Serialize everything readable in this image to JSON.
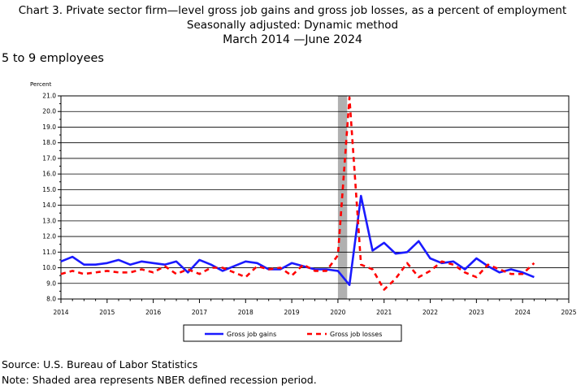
{
  "title": {
    "line1": "Chart 3. Private sector firm—level gross job gains and gross job losses, as a percent of employment",
    "line2": "Seasonally adjusted: Dynamic method",
    "line3": "March 2014  —June 2024"
  },
  "subtitle": "5 to 9 employees",
  "footer": {
    "source": "Source: U.S. Bureau of Labor Statistics",
    "note": "Note: Shaded area represents NBER defined recession period."
  },
  "colors": {
    "gains": "#1a1aff",
    "losses": "#ff0000",
    "recession": "#b0b0b0"
  },
  "chart_data": {
    "type": "line",
    "ylabel": "Percent",
    "ylim": [
      8.0,
      21.0
    ],
    "xlim": [
      2014,
      2025
    ],
    "y_ticks": [
      "8.0",
      "9.0",
      "10.0",
      "11.0",
      "12.0",
      "13.0",
      "14.0",
      "15.0",
      "16.0",
      "17.0",
      "18.0",
      "19.0",
      "20.0",
      "21.0"
    ],
    "x_ticks": [
      "2014",
      "2015",
      "2016",
      "2017",
      "2018",
      "2019",
      "2020",
      "2021",
      "2022",
      "2023",
      "2024",
      "2025"
    ],
    "grid": true,
    "legend_position": "bottom",
    "recession": [
      2020.0,
      2020.2
    ],
    "series": [
      {
        "name": "Gross job gains",
        "style": "solid",
        "x": [
          2014.0,
          2014.25,
          2014.5,
          2014.75,
          2015.0,
          2015.25,
          2015.5,
          2015.75,
          2016.0,
          2016.25,
          2016.5,
          2016.75,
          2017.0,
          2017.25,
          2017.5,
          2017.75,
          2018.0,
          2018.25,
          2018.5,
          2018.75,
          2019.0,
          2019.25,
          2019.5,
          2019.75,
          2020.0,
          2020.25,
          2020.5,
          2020.75,
          2021.0,
          2021.25,
          2021.5,
          2021.75,
          2022.0,
          2022.25,
          2022.5,
          2022.75,
          2023.0,
          2023.25,
          2023.5,
          2023.75,
          2024.0,
          2024.25
        ],
        "values": [
          10.4,
          10.7,
          10.2,
          10.2,
          10.3,
          10.5,
          10.2,
          10.4,
          10.3,
          10.2,
          10.4,
          9.7,
          10.5,
          10.2,
          9.8,
          10.1,
          10.4,
          10.3,
          9.9,
          9.9,
          10.3,
          10.1,
          9.9,
          9.9,
          9.8,
          8.9,
          14.6,
          11.1,
          11.6,
          10.9,
          11.0,
          11.7,
          10.6,
          10.3,
          10.4,
          9.9,
          10.6,
          10.1,
          9.7,
          9.9,
          9.7,
          9.4
        ]
      },
      {
        "name": "Gross job losses",
        "style": "dashed",
        "x": [
          2014.0,
          2014.25,
          2014.5,
          2014.75,
          2015.0,
          2015.25,
          2015.5,
          2015.75,
          2016.0,
          2016.25,
          2016.5,
          2016.75,
          2017.0,
          2017.25,
          2017.5,
          2017.75,
          2018.0,
          2018.25,
          2018.5,
          2018.75,
          2019.0,
          2019.25,
          2019.5,
          2019.75,
          2020.0,
          2020.25,
          2020.5,
          2020.75,
          2021.0,
          2021.25,
          2021.5,
          2021.75,
          2022.0,
          2022.25,
          2022.5,
          2022.75,
          2023.0,
          2023.25,
          2023.5,
          2023.75,
          2024.0,
          2024.25
        ],
        "values": [
          9.6,
          9.8,
          9.6,
          9.7,
          9.8,
          9.7,
          9.7,
          9.9,
          9.7,
          10.1,
          9.6,
          9.9,
          9.6,
          10.0,
          10.0,
          9.7,
          9.4,
          10.1,
          9.9,
          10.0,
          9.5,
          10.2,
          9.8,
          9.8,
          10.8,
          20.9,
          10.2,
          9.9,
          8.6,
          9.3,
          10.3,
          9.4,
          9.8,
          10.4,
          10.2,
          9.7,
          9.4,
          10.2,
          9.9,
          9.6,
          9.6,
          10.3
        ]
      }
    ]
  }
}
